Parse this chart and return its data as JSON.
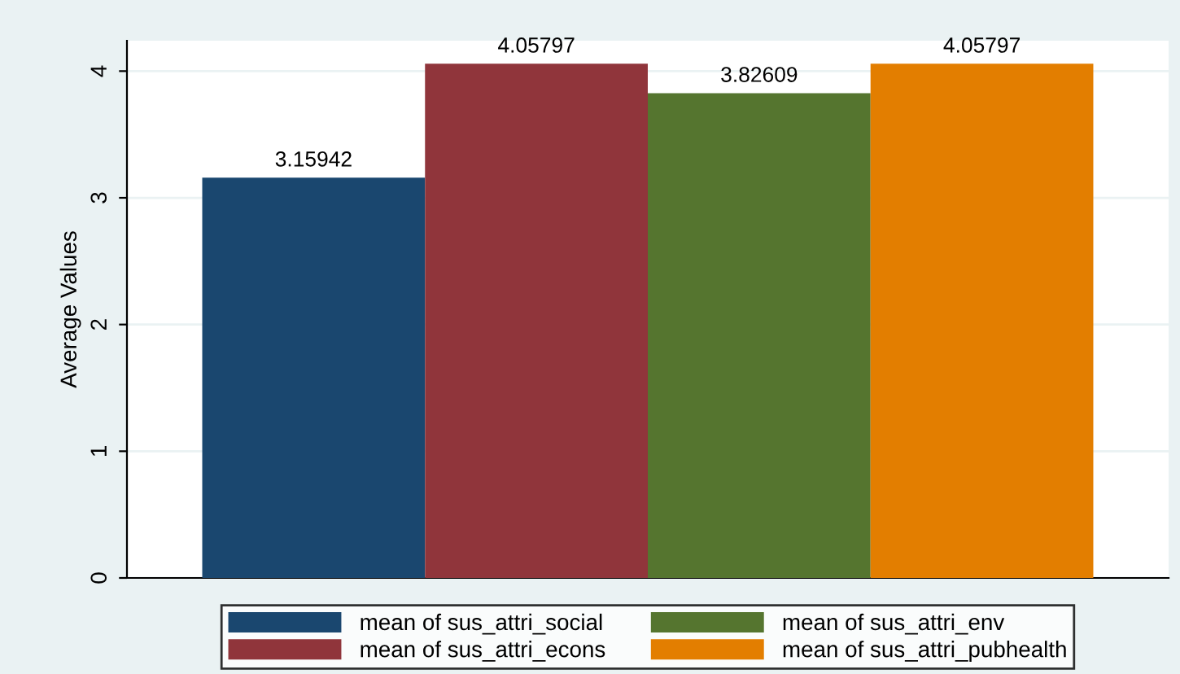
{
  "chart_data": {
    "type": "bar",
    "ylabel": "Average Values",
    "categories": [
      null
    ],
    "series": [
      {
        "name": "mean of sus_attri_social",
        "color": "#1a476f",
        "values": [
          3.15942
        ]
      },
      {
        "name": "mean of sus_attri_econs",
        "color": "#90353b",
        "values": [
          4.05797
        ]
      },
      {
        "name": "mean of sus_attri_env",
        "color": "#55752f",
        "values": [
          3.82609
        ]
      },
      {
        "name": "mean of sus_attri_pubhealth",
        "color": "#e37e00",
        "values": [
          4.05797
        ]
      }
    ],
    "ylim": [
      0,
      4.24
    ],
    "yticks": [
      0,
      1,
      2,
      3,
      4
    ],
    "grid": "y",
    "data_labels": true,
    "legend": "bottom"
  }
}
